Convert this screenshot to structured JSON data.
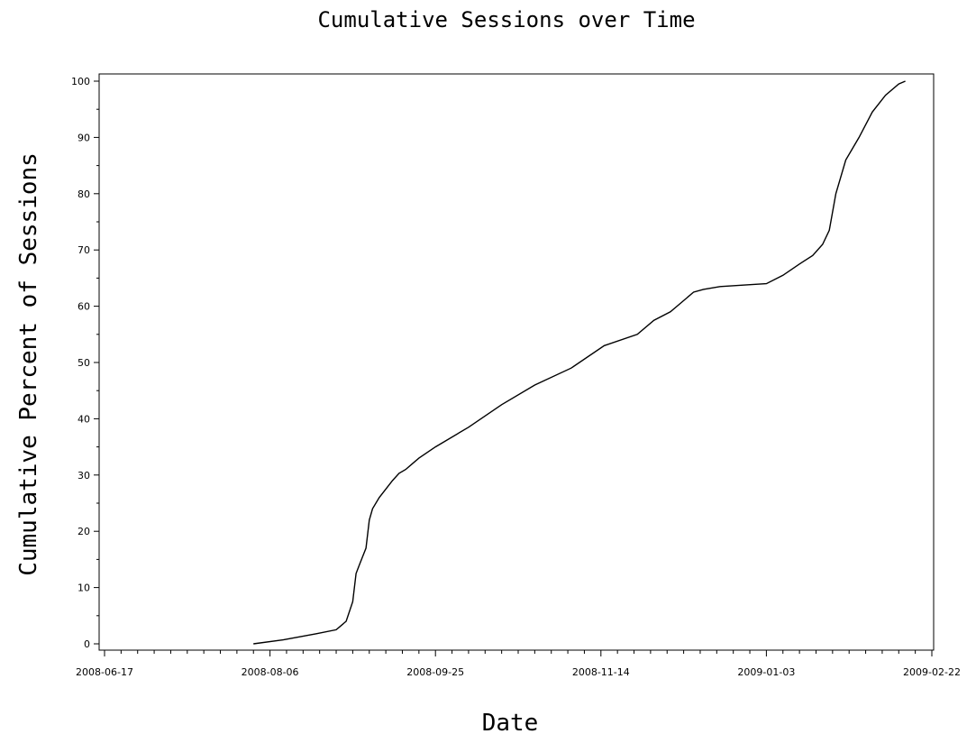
{
  "chart_data": {
    "type": "line",
    "title": "Cumulative Sessions over Time",
    "xlabel": "Date",
    "ylabel": "Cumulative Percent of Sessions",
    "xlim": [
      "2008-06-17",
      "2009-02-22"
    ],
    "ylim": [
      0,
      100
    ],
    "x_ticks": [
      "2008-06-17",
      "2008-08-06",
      "2008-09-25",
      "2008-11-14",
      "2009-01-03",
      "2009-02-22"
    ],
    "y_ticks": [
      0,
      10,
      20,
      30,
      40,
      50,
      60,
      70,
      80,
      90,
      100
    ],
    "grid": false,
    "series": [
      {
        "x": [
          "2008-08-01",
          "2008-08-10",
          "2008-08-20",
          "2008-08-26",
          "2008-08-27",
          "2008-08-29",
          "2008-08-31",
          "2008-09-01",
          "2008-09-02",
          "2008-09-03",
          "2008-09-04",
          "2008-09-05",
          "2008-09-06",
          "2008-09-08",
          "2008-09-10",
          "2008-09-12",
          "2008-09-14",
          "2008-09-16",
          "2008-09-18",
          "2008-09-20",
          "2008-09-25",
          "2008-10-05",
          "2008-10-15",
          "2008-10-25",
          "2008-11-05",
          "2008-11-15",
          "2008-11-25",
          "2008-11-30",
          "2008-12-05",
          "2008-12-08",
          "2008-12-12",
          "2008-12-15",
          "2008-12-20",
          "2008-12-28",
          "2009-01-03",
          "2009-01-08",
          "2009-01-13",
          "2009-01-17",
          "2009-01-20",
          "2009-01-22",
          "2009-01-24",
          "2009-01-27",
          "2009-01-31",
          "2009-02-04",
          "2009-02-08",
          "2009-02-12",
          "2009-02-14"
        ],
        "y": [
          0,
          0.7,
          1.8,
          2.5,
          3.0,
          4.0,
          7.5,
          12.5,
          14.0,
          15.5,
          17.0,
          22.0,
          24.0,
          26.0,
          27.5,
          29.0,
          30.3,
          31.0,
          32.0,
          33.0,
          35.0,
          38.5,
          42.5,
          46.0,
          49.0,
          53.0,
          55.0,
          57.5,
          59.0,
          60.5,
          62.5,
          63.0,
          63.5,
          63.8,
          64.0,
          65.5,
          67.5,
          69.0,
          71.0,
          73.5,
          80.0,
          86.0,
          90.0,
          94.5,
          97.5,
          99.5,
          100
        ]
      }
    ]
  }
}
